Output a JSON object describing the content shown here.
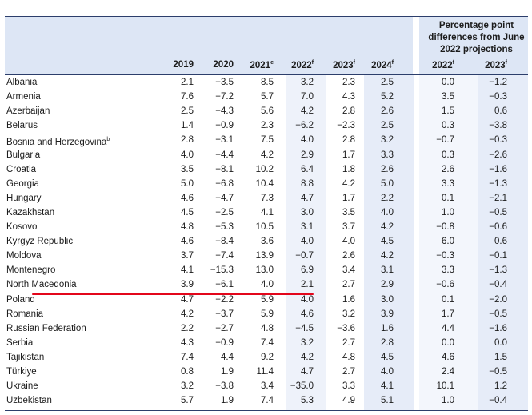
{
  "header": {
    "years": [
      {
        "label": "2019",
        "sup": ""
      },
      {
        "label": "2020",
        "sup": ""
      },
      {
        "label": "2021",
        "sup": "e"
      },
      {
        "label": "2022",
        "sup": "f"
      },
      {
        "label": "2023",
        "sup": "f"
      },
      {
        "label": "2024",
        "sup": "f"
      }
    ],
    "pp_title_line1": "Percentage point",
    "pp_title_line2": "differences from June",
    "pp_title_line3": "2022 projections",
    "pp_years": [
      {
        "label": "2022",
        "sup": "f"
      },
      {
        "label": "2023",
        "sup": "f"
      }
    ]
  },
  "rows": [
    {
      "country": "Albania",
      "sup": "",
      "values": [
        "2.1",
        "−3.5",
        "8.5",
        "3.2",
        "2.3",
        "2.5"
      ],
      "diff": [
        "0.0",
        "−1.2"
      ]
    },
    {
      "country": "Armenia",
      "sup": "",
      "values": [
        "7.6",
        "−7.2",
        "5.7",
        "7.0",
        "4.3",
        "5.2"
      ],
      "diff": [
        "3.5",
        "−0.3"
      ]
    },
    {
      "country": "Azerbaijan",
      "sup": "",
      "values": [
        "2.5",
        "−4.3",
        "5.6",
        "4.2",
        "2.8",
        "2.6"
      ],
      "diff": [
        "1.5",
        "0.6"
      ]
    },
    {
      "country": "Belarus",
      "sup": "",
      "values": [
        "1.4",
        "−0.9",
        "2.3",
        "−6.2",
        "−2.3",
        "2.5"
      ],
      "diff": [
        "0.3",
        "−3.8"
      ]
    },
    {
      "country": "Bosnia and Herzegovina",
      "sup": "b",
      "values": [
        "2.8",
        "−3.1",
        "7.5",
        "4.0",
        "2.8",
        "3.2"
      ],
      "diff": [
        "−0.7",
        "−0.3"
      ]
    },
    {
      "country": "Bulgaria",
      "sup": "",
      "values": [
        "4.0",
        "−4.4",
        "4.2",
        "2.9",
        "1.7",
        "3.3"
      ],
      "diff": [
        "0.3",
        "−2.6"
      ]
    },
    {
      "country": "Croatia",
      "sup": "",
      "values": [
        "3.5",
        "−8.1",
        "10.2",
        "6.4",
        "1.8",
        "2.6"
      ],
      "diff": [
        "2.6",
        "−1.6"
      ]
    },
    {
      "country": "Georgia",
      "sup": "",
      "values": [
        "5.0",
        "−6.8",
        "10.4",
        "8.8",
        "4.2",
        "5.0"
      ],
      "diff": [
        "3.3",
        "−1.3"
      ]
    },
    {
      "country": "Hungary",
      "sup": "",
      "values": [
        "4.6",
        "−4.7",
        "7.3",
        "4.7",
        "1.7",
        "2.2"
      ],
      "diff": [
        "0.1",
        "−2.1"
      ]
    },
    {
      "country": "Kazakhstan",
      "sup": "",
      "values": [
        "4.5",
        "−2.5",
        "4.1",
        "3.0",
        "3.5",
        "4.0"
      ],
      "diff": [
        "1.0",
        "−0.5"
      ]
    },
    {
      "country": "Kosovo",
      "sup": "",
      "values": [
        "4.8",
        "−5.3",
        "10.5",
        "3.1",
        "3.7",
        "4.2"
      ],
      "diff": [
        "−0.8",
        "−0.6"
      ]
    },
    {
      "country": "Kyrgyz Republic",
      "sup": "",
      "values": [
        "4.6",
        "−8.4",
        "3.6",
        "4.0",
        "4.0",
        "4.5"
      ],
      "diff": [
        "6.0",
        "0.6"
      ]
    },
    {
      "country": "Moldova",
      "sup": "",
      "values": [
        "3.7",
        "−7.4",
        "13.9",
        "−0.7",
        "2.6",
        "4.2"
      ],
      "diff": [
        "−0.3",
        "−0.1"
      ]
    },
    {
      "country": "Montenegro",
      "sup": "",
      "values": [
        "4.1",
        "−15.3",
        "13.0",
        "6.9",
        "3.4",
        "3.1"
      ],
      "diff": [
        "3.3",
        "−1.3"
      ]
    },
    {
      "country": "North Macedonia",
      "sup": "",
      "values": [
        "3.9",
        "−6.1",
        "4.0",
        "2.1",
        "2.7",
        "2.9"
      ],
      "diff": [
        "−0.6",
        "−0.4"
      ]
    },
    {
      "country": "Poland",
      "sup": "",
      "values": [
        "4.7",
        "−2.2",
        "5.9",
        "4.0",
        "1.6",
        "3.0"
      ],
      "diff": [
        "0.1",
        "−2.0"
      ]
    },
    {
      "country": "Romania",
      "sup": "",
      "values": [
        "4.2",
        "−3.7",
        "5.9",
        "4.6",
        "3.2",
        "3.9"
      ],
      "diff": [
        "1.7",
        "−0.5"
      ]
    },
    {
      "country": "Russian Federation",
      "sup": "",
      "values": [
        "2.2",
        "−2.7",
        "4.8",
        "−4.5",
        "−3.6",
        "1.6"
      ],
      "diff": [
        "4.4",
        "−1.6"
      ]
    },
    {
      "country": "Serbia",
      "sup": "",
      "values": [
        "4.3",
        "−0.9",
        "7.4",
        "3.2",
        "2.7",
        "2.8"
      ],
      "diff": [
        "0.0",
        "0.0"
      ]
    },
    {
      "country": "Tajikistan",
      "sup": "",
      "values": [
        "7.4",
        "4.4",
        "9.2",
        "4.2",
        "4.8",
        "4.5"
      ],
      "diff": [
        "4.6",
        "1.5"
      ]
    },
    {
      "country": "Türkiye",
      "sup": "",
      "values": [
        "0.8",
        "1.9",
        "11.4",
        "4.7",
        "2.7",
        "4.0"
      ],
      "diff": [
        "2.4",
        "−0.5"
      ]
    },
    {
      "country": "Ukraine",
      "sup": "",
      "values": [
        "3.2",
        "−3.8",
        "3.4",
        "−35.0",
        "3.3",
        "4.1"
      ],
      "diff": [
        "10.1",
        "1.2"
      ]
    },
    {
      "country": "Uzbekistan",
      "sup": "",
      "values": [
        "5.7",
        "1.9",
        "7.4",
        "5.3",
        "4.9",
        "5.1"
      ],
      "diff": [
        "1.0",
        "−0.4"
      ]
    }
  ],
  "highlight": {
    "country": "North Macedonia",
    "underline_color": "#e3061b"
  }
}
